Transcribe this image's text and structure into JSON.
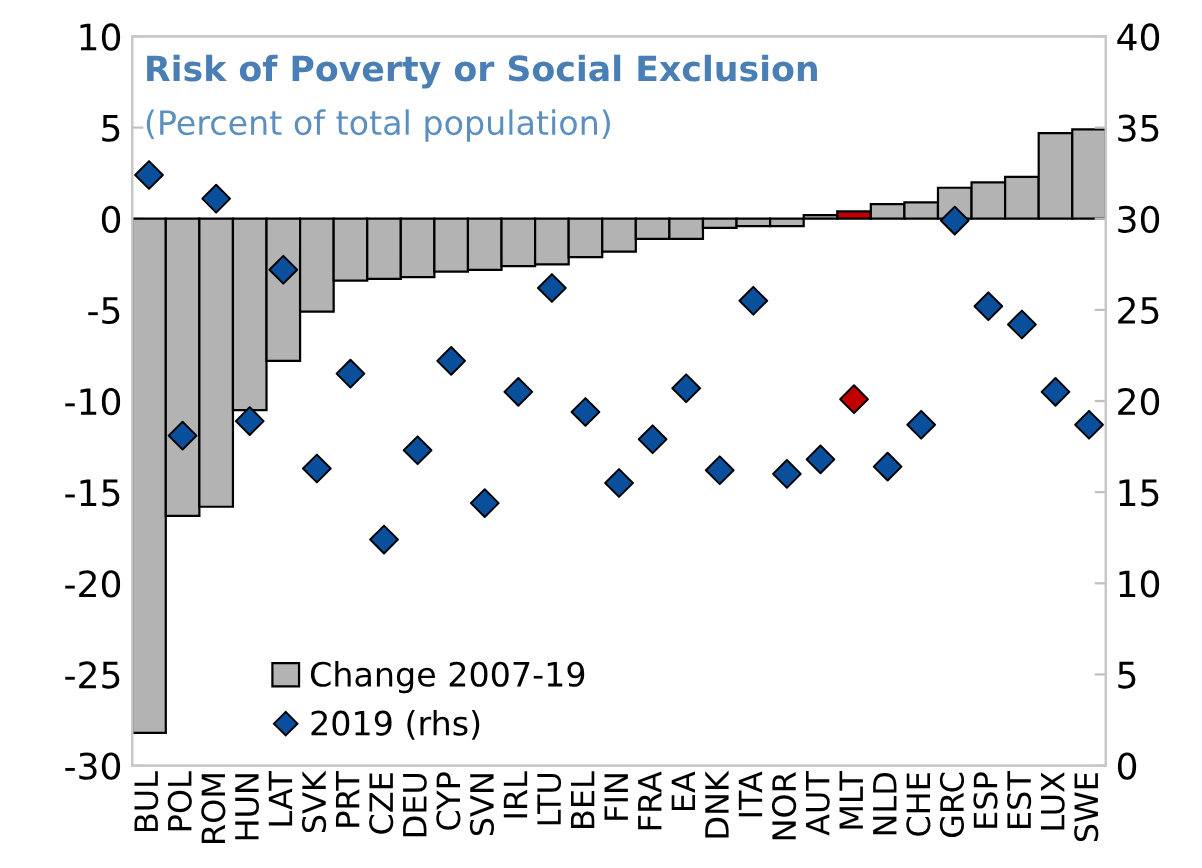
{
  "chart_data": {
    "type": "bar",
    "title": "Risk of Poverty or Social Exclusion",
    "subtitle": "(Percent of total population)",
    "categories": [
      "BUL",
      "POL",
      "ROM",
      "HUN",
      "LAT",
      "SVK",
      "PRT",
      "CZE",
      "DEU",
      "CYP",
      "SVN",
      "IRL",
      "LTU",
      "BEL",
      "FIN",
      "FRA",
      "EA",
      "DNK",
      "ITA",
      "NOR",
      "AUT",
      "MLT",
      "NLD",
      "CHE",
      "GRC",
      "ESP",
      "EST",
      "LUX",
      "SWE"
    ],
    "series": [
      {
        "name": "Change 2007-19",
        "color": "#b3b3b3",
        "colors": [
          "#b3b3b3",
          "#b3b3b3",
          "#b3b3b3",
          "#b3b3b3",
          "#b3b3b3",
          "#b3b3b3",
          "#b3b3b3",
          "#b3b3b3",
          "#b3b3b3",
          "#b3b3b3",
          "#b3b3b3",
          "#b3b3b3",
          "#b3b3b3",
          "#b3b3b3",
          "#b3b3b3",
          "#b3b3b3",
          "#b3b3b3",
          "#b3b3b3",
          "#b3b3b3",
          "#b3b3b3",
          "#b3b3b3",
          "#c00000",
          "#b3b3b3",
          "#b3b3b3",
          "#b3b3b3",
          "#b3b3b3",
          "#b3b3b3",
          "#b3b3b3",
          "#b3b3b3"
        ],
        "values": [
          -28.2,
          -16.3,
          -15.8,
          -10.5,
          -7.8,
          -5.1,
          -3.4,
          -3.3,
          -3.2,
          -2.9,
          -2.8,
          -2.6,
          -2.5,
          -2.1,
          -1.8,
          -1.1,
          -1.1,
          -0.5,
          -0.4,
          -0.4,
          0.2,
          0.4,
          0.8,
          0.9,
          1.7,
          2.0,
          2.3,
          4.7,
          4.9
        ]
      },
      {
        "name": "2019 (rhs)",
        "type": "scatter",
        "axis": "y2",
        "marker": "diamond",
        "color": "#0a4f9c",
        "colors": [
          "#0a4f9c",
          "#0a4f9c",
          "#0a4f9c",
          "#0a4f9c",
          "#0a4f9c",
          "#0a4f9c",
          "#0a4f9c",
          "#0a4f9c",
          "#0a4f9c",
          "#0a4f9c",
          "#0a4f9c",
          "#0a4f9c",
          "#0a4f9c",
          "#0a4f9c",
          "#0a4f9c",
          "#0a4f9c",
          "#0a4f9c",
          "#0a4f9c",
          "#0a4f9c",
          "#0a4f9c",
          "#0a4f9c",
          "#c00000",
          "#0a4f9c",
          "#0a4f9c",
          "#0a4f9c",
          "#0a4f9c",
          "#0a4f9c",
          "#0a4f9c",
          "#0a4f9c"
        ],
        "values": [
          32.4,
          18.1,
          31.1,
          18.9,
          27.2,
          16.3,
          21.5,
          12.4,
          17.3,
          22.2,
          14.4,
          20.5,
          26.2,
          19.4,
          15.5,
          17.9,
          20.7,
          16.2,
          25.5,
          16.0,
          16.8,
          20.1,
          16.4,
          18.7,
          29.9,
          25.2,
          24.2,
          20.5,
          18.7
        ]
      }
    ],
    "ylim": [
      -30,
      10
    ],
    "yticks": [
      -30,
      -25,
      -20,
      -15,
      -10,
      -5,
      0,
      5,
      10
    ],
    "y2lim": [
      0,
      40
    ],
    "y2ticks": [
      0,
      5,
      10,
      15,
      20,
      25,
      30,
      35,
      40
    ],
    "grid": false,
    "legend": "bottom left"
  }
}
